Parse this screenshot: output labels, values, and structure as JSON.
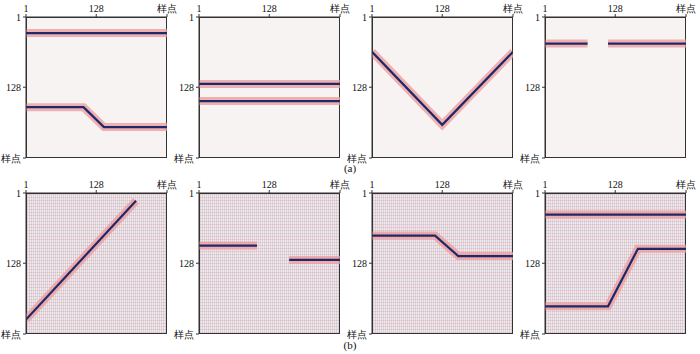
{
  "row_labels": [
    "(a)",
    "(b)"
  ],
  "chart_data": [
    {
      "type": "line",
      "xlim": [
        1,
        256
      ],
      "ylim": [
        1,
        256
      ],
      "xticks": [
        1,
        128,
        {
          "value": 256,
          "label": "样点"
        }
      ],
      "yticks": [
        1,
        128,
        {
          "value": 256,
          "label": "样点"
        }
      ],
      "series": [
        {
          "color": "#1c2a6b",
          "x": [
            1,
            256
          ],
          "values": [
            30,
            30
          ]
        },
        {
          "color": "#1c2a6b",
          "x": [
            1,
            105,
            142,
            256
          ],
          "values": [
            164,
            164,
            200,
            200
          ]
        }
      ]
    },
    {
      "type": "line",
      "xlim": [
        1,
        256
      ],
      "ylim": [
        1,
        256
      ],
      "xticks": [
        1,
        128,
        {
          "value": 256,
          "label": "样点"
        }
      ],
      "yticks": [
        1,
        128,
        {
          "value": 256,
          "label": "样点"
        }
      ],
      "series": [
        {
          "color": "#1c2a6b",
          "x": [
            1,
            256
          ],
          "values": [
            122,
            122
          ]
        },
        {
          "color": "#1c2a6b",
          "x": [
            1,
            256
          ],
          "values": [
            153,
            153
          ]
        }
      ]
    },
    {
      "type": "line",
      "xlim": [
        1,
        256
      ],
      "ylim": [
        1,
        256
      ],
      "xticks": [
        1,
        128,
        {
          "value": 256,
          "label": "样点"
        }
      ],
      "yticks": [
        1,
        128,
        {
          "value": 256,
          "label": "样点"
        }
      ],
      "series": [
        {
          "color": "#1c2a6b",
          "x": [
            1,
            128,
            256
          ],
          "values": [
            64,
            196,
            64
          ]
        }
      ]
    },
    {
      "type": "line",
      "xlim": [
        1,
        256
      ],
      "ylim": [
        1,
        256
      ],
      "xticks": [
        1,
        128,
        {
          "value": 256,
          "label": "样点"
        }
      ],
      "yticks": [
        1,
        128,
        {
          "value": 256,
          "label": "样点"
        }
      ],
      "series": [
        {
          "color": "#1c2a6b",
          "x": [
            1,
            78,
            96,
            115,
            256
          ],
          "values": [
            49,
            49,
            null,
            49,
            49
          ]
        }
      ]
    },
    {
      "type": "line",
      "xlim": [
        1,
        256
      ],
      "ylim": [
        1,
        256
      ],
      "xticks": [
        1,
        128,
        {
          "value": 256,
          "label": "样点"
        }
      ],
      "yticks": [
        1,
        128,
        {
          "value": 256,
          "label": "样点"
        }
      ],
      "series": [
        {
          "color": "#1c2a6b",
          "x": [
            1,
            200
          ],
          "values": [
            230,
            15
          ]
        }
      ]
    },
    {
      "type": "line",
      "xlim": [
        1,
        256
      ],
      "ylim": [
        1,
        256
      ],
      "xticks": [
        1,
        128,
        {
          "value": 256,
          "label": "样点"
        }
      ],
      "yticks": [
        1,
        128,
        {
          "value": 256,
          "label": "样点"
        }
      ],
      "series": [
        {
          "color": "#1c2a6b",
          "x": [
            1,
            106
          ],
          "values": [
            96,
            96
          ]
        },
        {
          "color": "#1c2a6b",
          "x": [
            164,
            256
          ],
          "values": [
            122,
            122
          ]
        }
      ]
    },
    {
      "type": "line",
      "xlim": [
        1,
        256
      ],
      "ylim": [
        1,
        256
      ],
      "xticks": [
        1,
        128,
        {
          "value": 256,
          "label": "样点"
        }
      ],
      "yticks": [
        1,
        128,
        {
          "value": 256,
          "label": "样点"
        }
      ],
      "series": [
        {
          "color": "#1c2a6b",
          "x": [
            1,
            115,
            157,
            256
          ],
          "values": [
            78,
            78,
            115,
            115
          ]
        }
      ]
    },
    {
      "type": "line",
      "xlim": [
        1,
        256
      ],
      "ylim": [
        1,
        256
      ],
      "xticks": [
        1,
        128,
        {
          "value": 256,
          "label": "样点"
        }
      ],
      "yticks": [
        1,
        128,
        {
          "value": 256,
          "label": "样点"
        }
      ],
      "series": [
        {
          "color": "#1c2a6b",
          "x": [
            1,
            256
          ],
          "values": [
            40,
            40
          ]
        },
        {
          "color": "#1c2a6b",
          "x": [
            1,
            115,
            169,
            256
          ],
          "values": [
            206,
            206,
            102,
            102
          ]
        }
      ]
    }
  ]
}
